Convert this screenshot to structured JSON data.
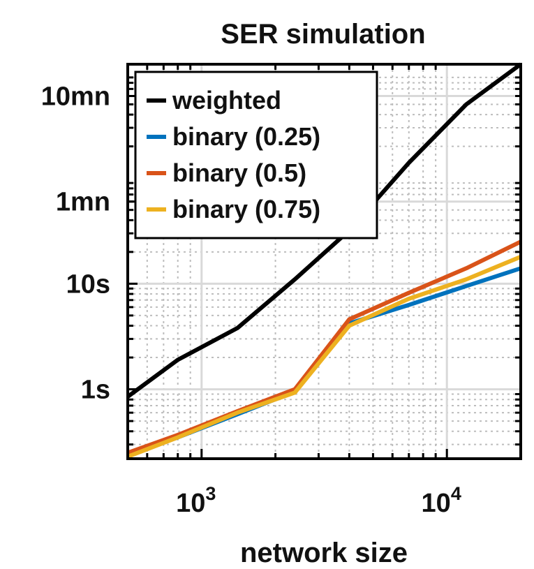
{
  "chart_data": {
    "type": "line",
    "title": "SER simulation",
    "xlabel": "network size",
    "ylabel": "",
    "x_scale": "log",
    "y_scale": "log",
    "xlim": [
      500,
      20000
    ],
    "ylim_seconds": [
      0.22,
      1200
    ],
    "x_ticks": [
      {
        "value": 1000,
        "base": "10",
        "exp": "3"
      },
      {
        "value": 10000,
        "base": "10",
        "exp": "4"
      }
    ],
    "y_ticks": [
      {
        "value": 1,
        "label": "1s"
      },
      {
        "value": 10,
        "label": "10s"
      },
      {
        "value": 60,
        "label": "1mn"
      },
      {
        "value": 600,
        "label": "10mn"
      }
    ],
    "grid": true,
    "minor_grid": true,
    "legend_position": "top-left",
    "series": [
      {
        "name": "weighted",
        "color": "#000000",
        "x": [
          500,
          800,
          1400,
          2400,
          4000,
          7000,
          12000,
          20000
        ],
        "y": [
          0.85,
          1.9,
          3.8,
          11,
          32,
          140,
          500,
          1200
        ]
      },
      {
        "name": "binary (0.25)",
        "color": "#0072BD",
        "x": [
          500,
          800,
          1400,
          2400,
          4000,
          7000,
          12000,
          20000
        ],
        "y": [
          0.24,
          0.35,
          0.58,
          0.95,
          4.2,
          6.3,
          9.5,
          14
        ]
      },
      {
        "name": "binary (0.5)",
        "color": "#D95319",
        "x": [
          500,
          800,
          1400,
          2400,
          4000,
          7000,
          12000,
          20000
        ],
        "y": [
          0.25,
          0.37,
          0.62,
          1.0,
          4.6,
          8.2,
          14,
          25
        ]
      },
      {
        "name": "binary (0.75)",
        "color": "#EDB120",
        "x": [
          500,
          800,
          1400,
          2400,
          4000,
          7000,
          12000,
          20000
        ],
        "y": [
          0.23,
          0.35,
          0.6,
          0.93,
          4.0,
          7.2,
          11,
          18
        ]
      }
    ]
  }
}
